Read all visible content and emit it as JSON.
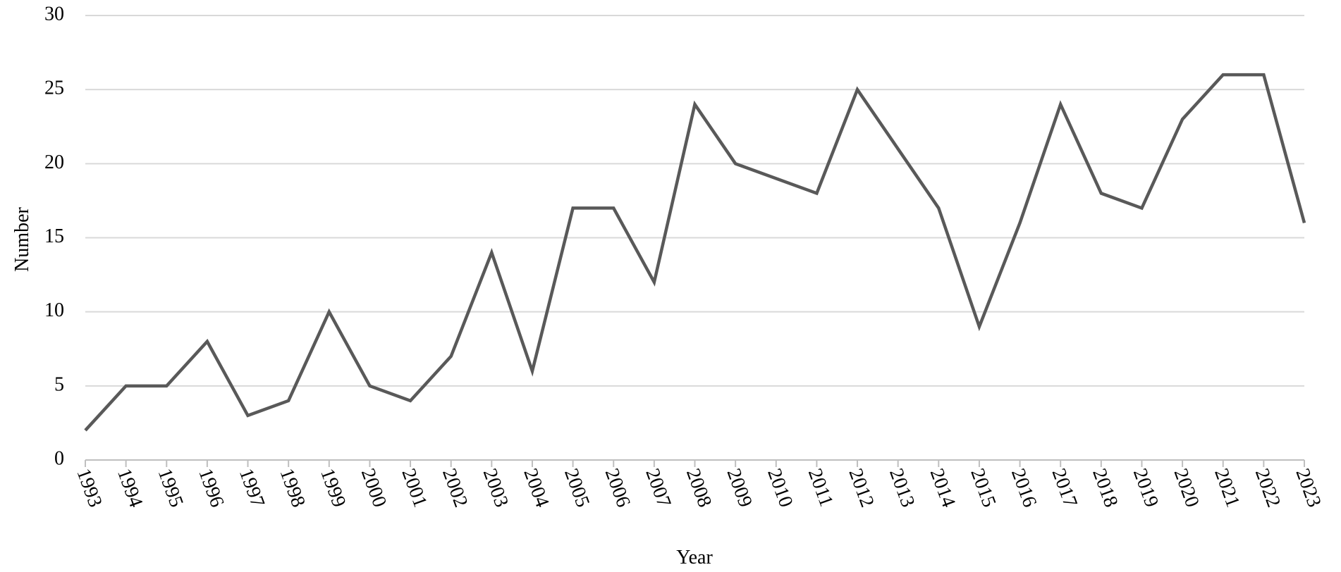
{
  "chart_data": {
    "type": "line",
    "x_label": "Year",
    "y_label": "Number",
    "x": [
      1993,
      1994,
      1995,
      1996,
      1997,
      1998,
      1999,
      2000,
      2001,
      2002,
      2003,
      2004,
      2005,
      2006,
      2007,
      2008,
      2009,
      2010,
      2011,
      2012,
      2013,
      2014,
      2015,
      2016,
      2017,
      2018,
      2019,
      2020,
      2021,
      2022,
      2023
    ],
    "series": [
      {
        "color": "#595959",
        "values": [
          2,
          5,
          5,
          8,
          3,
          4,
          10,
          5,
          4,
          7,
          14,
          6,
          17,
          17,
          12,
          24,
          20,
          19,
          18,
          25,
          21,
          17,
          9,
          16,
          24,
          18,
          17,
          23,
          26,
          26,
          16
        ]
      }
    ],
    "xlim": [
      1993,
      2023
    ],
    "xticks": [
      1993,
      1994,
      1995,
      1996,
      1997,
      1998,
      1999,
      2000,
      2001,
      2002,
      2003,
      2004,
      2005,
      2006,
      2007,
      2008,
      2009,
      2010,
      2011,
      2012,
      2013,
      2014,
      2015,
      2016,
      2017,
      2018,
      2019,
      2020,
      2021,
      2022,
      2023
    ],
    "ylim": [
      0,
      30
    ],
    "yticks": [
      0,
      5,
      10,
      15,
      20,
      25,
      30
    ],
    "grid": true
  }
}
